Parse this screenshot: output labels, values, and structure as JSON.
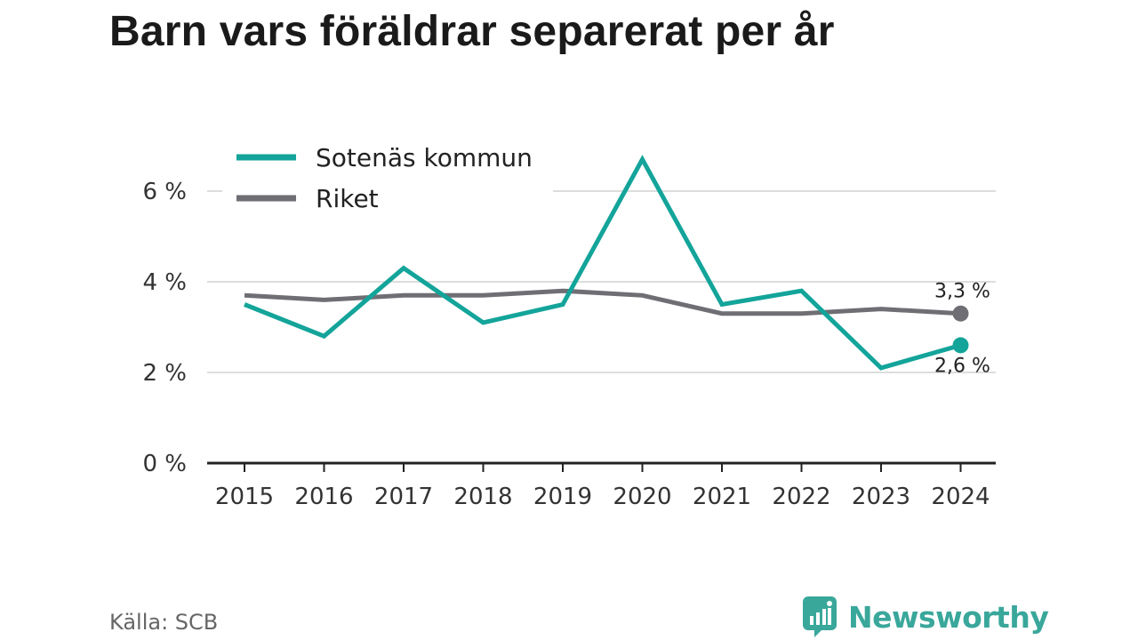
{
  "title": "Barn vars föräldrar separerat per år",
  "source": "Källa: SCB",
  "brand": "Newsworthy",
  "colors": {
    "primary": "#13a49a",
    "secondary": "#6e6e74",
    "brand": "#3aa79b",
    "grid": "#dddddd",
    "axis": "#222222"
  },
  "chart_data": {
    "type": "line",
    "title": "Barn vars föräldrar separerat per år",
    "xlabel": "",
    "ylabel": "",
    "x": [
      "2015",
      "2016",
      "2017",
      "2018",
      "2019",
      "2020",
      "2021",
      "2022",
      "2023",
      "2024"
    ],
    "ylim": [
      0,
      7.5
    ],
    "yticks": [
      0,
      2,
      4,
      6
    ],
    "ytick_labels": [
      "0 %",
      "2 %",
      "4 %",
      "6 %"
    ],
    "grid": true,
    "legend_position": "top-left",
    "series": [
      {
        "name": "Sotenäs kommun",
        "color": "#13a49a",
        "values": [
          3.5,
          2.8,
          4.3,
          3.1,
          3.5,
          6.7,
          3.5,
          3.8,
          2.1,
          2.6
        ],
        "end_label": "2,6 %"
      },
      {
        "name": "Riket",
        "color": "#6e6e74",
        "values": [
          3.7,
          3.6,
          3.7,
          3.7,
          3.8,
          3.7,
          3.3,
          3.3,
          3.4,
          3.3
        ],
        "end_label": "3,3 %"
      }
    ]
  }
}
